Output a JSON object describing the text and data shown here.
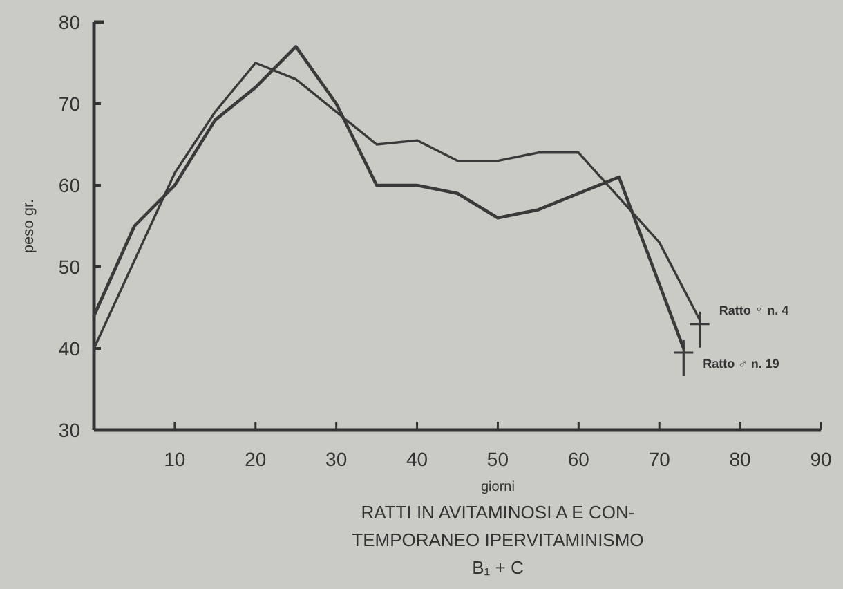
{
  "chart_data": {
    "type": "line",
    "title": "RATTI IN AVITAMINOSI A E CON-\nTEMPORANEO IPERVITAMINISMO\nB₁ + C",
    "xlabel": "giorni",
    "ylabel": "peso gr.",
    "xlim": [
      0,
      90
    ],
    "xticks": [
      {
        "value": 0,
        "label": null
      },
      10,
      20,
      30,
      40,
      50,
      60,
      70,
      80,
      90
    ],
    "ylim": [
      30,
      80
    ],
    "yticks": [
      30,
      40,
      50,
      60,
      70,
      80
    ],
    "grid": false,
    "marker": "none",
    "line_style": "solid",
    "series": [
      {
        "name": "Ratto ♀ n. 4",
        "color": "#3a3a3a",
        "x": [
          0,
          10,
          15,
          20,
          25,
          30,
          35,
          40,
          45,
          50,
          55,
          60,
          70,
          75
        ],
        "values": [
          40,
          61.5,
          69,
          75,
          73,
          69,
          65,
          65.5,
          63,
          63,
          64,
          64,
          53,
          43.5
        ]
      },
      {
        "name": "Ratto ♂ n. 19",
        "color": "#3a3a3a",
        "x": [
          0,
          5,
          10,
          15,
          20,
          25,
          30,
          35,
          40,
          45,
          50,
          55,
          65,
          73
        ],
        "values": [
          44,
          55,
          60,
          68,
          72,
          77,
          70,
          60,
          60,
          59,
          56,
          57,
          61,
          40
        ]
      }
    ]
  }
}
